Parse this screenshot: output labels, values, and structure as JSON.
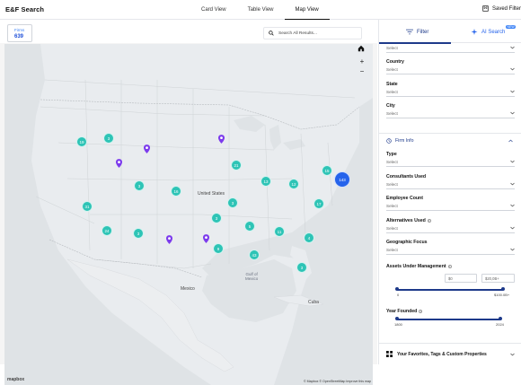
{
  "app": {
    "title": "E&F Search"
  },
  "views": [
    {
      "label": "Card View"
    },
    {
      "label": "Table View"
    },
    {
      "label": "Map View"
    }
  ],
  "saved_filters": "Saved Filter",
  "firms": {
    "label": "Firms",
    "count": "639"
  },
  "search": {
    "placeholder": "Search All Results..."
  },
  "map": {
    "labels": {
      "country_us": "United States",
      "country_mexico": "Mexico",
      "cuba": "Cuba",
      "gulf": "Gulf of\nMexico",
      "attribution": "© Mapbox © OpenStreetMap Improve this map",
      "logo": "mapbox"
    },
    "clusters": [
      {
        "label": "19"
      },
      {
        "label": "3"
      },
      {
        "label": "3"
      },
      {
        "label": "21"
      },
      {
        "label": "16"
      },
      {
        "label": "15"
      },
      {
        "label": "13"
      },
      {
        "label": "12"
      },
      {
        "label": "143"
      },
      {
        "label": "3"
      },
      {
        "label": "3"
      },
      {
        "label": "3"
      },
      {
        "label": "17"
      },
      {
        "label": "31"
      },
      {
        "label": "4"
      },
      {
        "label": "5"
      },
      {
        "label": "11"
      },
      {
        "label": "24"
      },
      {
        "label": "9"
      },
      {
        "label": "43"
      },
      {
        "label": "3"
      },
      {
        "label": "6"
      },
      {
        "label": "11"
      }
    ]
  },
  "panel": {
    "tabs": {
      "filter": "Filter",
      "ai": "AI Search",
      "new": "NEW"
    },
    "select_placeholder": "Select",
    "country": "Country",
    "state": "State",
    "city": "City",
    "firm_info": "Firm Info",
    "type": "Type",
    "consultants": "Consultants Used",
    "employee": "Employee Count",
    "alternatives": "Alternatives Used",
    "geographic": "Geographic Focus",
    "aum": "Assets Under Management",
    "aum_min": "$0",
    "aum_max": "$20,0B+",
    "aum_tick_min": "0",
    "aum_tick_max": "$100.0B+",
    "year": "Year Founded",
    "year_min": "1800",
    "year_max": "2024",
    "favorites": "Your Favorites, Tags & Custom Properties"
  },
  "colors": {
    "cluster": "#2ec4b6",
    "cluster_big": "#2563eb",
    "pin": "#7c3aed",
    "accent": "#1e3a8a"
  }
}
